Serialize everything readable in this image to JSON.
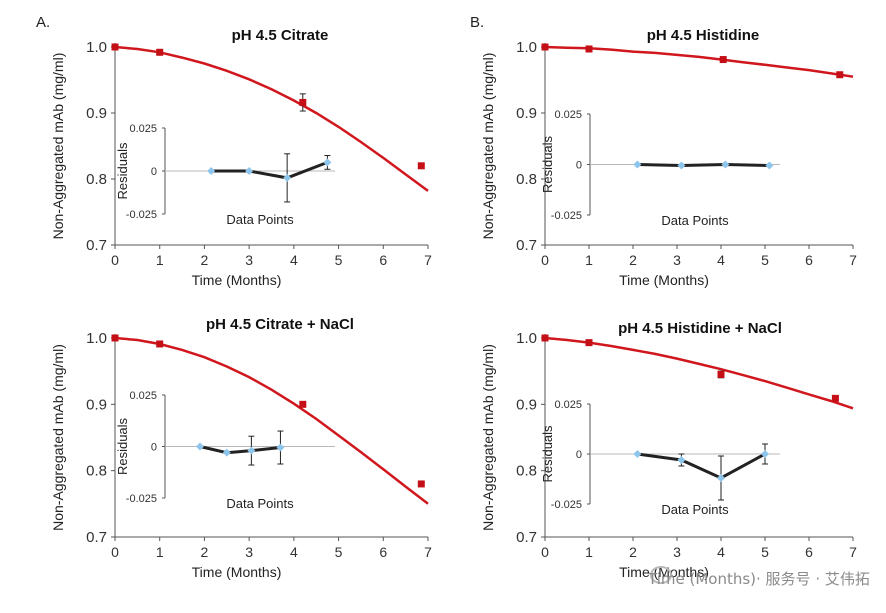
{
  "panel_labels": [
    "A.",
    "B."
  ],
  "watermark": "Time (Months)· 服务号 · 艾伟拓",
  "colors": {
    "main_line": "#d0171d",
    "main_marker": "#c40f16",
    "residual_line": "#222222",
    "residual_marker": "#8ec5ec",
    "axis": "#555555",
    "zero_line": "#b8b8b8"
  },
  "chart_data": [
    {
      "type": "line",
      "panel": "A.",
      "title": "pH 4.5 Citrate",
      "xlabel": "Time (Months)",
      "ylabel": "Non-Aggregated mAb (mg/ml)",
      "xlim": [
        0,
        7
      ],
      "ylim": [
        0.7,
        1.0
      ],
      "xticks": [
        "0",
        "1",
        "2",
        "3",
        "4",
        "5",
        "6",
        "7"
      ],
      "yticks": [
        "0.7",
        "0.8",
        "0.9",
        "1.0"
      ],
      "grid": false,
      "legend": "none",
      "series": [
        {
          "type": "line",
          "x": [
            0,
            0.5,
            1,
            1.5,
            2,
            2.5,
            3,
            3.5,
            4,
            4.5,
            5,
            5.5,
            6,
            6.5,
            7
          ],
          "y": [
            1.0,
            0.997,
            0.992,
            0.984,
            0.975,
            0.964,
            0.951,
            0.936,
            0.919,
            0.9,
            0.879,
            0.856,
            0.832,
            0.807,
            0.782
          ]
        },
        {
          "type": "scatter",
          "x": [
            0,
            1,
            4.2,
            6.85
          ],
          "y": [
            1.0,
            0.992,
            0.916,
            0.82
          ],
          "err": [
            0,
            0,
            0.013,
            0
          ]
        }
      ],
      "inset": {
        "xlabel": "Data Points",
        "ylabel": "Residuals",
        "yticks": [
          "0.025",
          "0",
          "-0.025"
        ],
        "ylim": [
          -0.025,
          0.025
        ],
        "x": [
          2.15,
          3.0,
          3.85,
          4.75
        ],
        "y": [
          0.0,
          0.0,
          -0.004,
          0.005
        ],
        "err": [
          0,
          0,
          0.014,
          0.004
        ]
      }
    },
    {
      "type": "line",
      "panel": "B.",
      "title": "pH 4.5 Histidine",
      "xlabel": "Time (Months)",
      "ylabel": "Non-Aggregated mAb (mg/ml)",
      "xlim": [
        0,
        7
      ],
      "ylim": [
        0.7,
        1.0
      ],
      "xticks": [
        "0",
        "1",
        "2",
        "3",
        "4",
        "5",
        "6",
        "7"
      ],
      "yticks": [
        "0.7",
        "0.8",
        "0.9",
        "1.0"
      ],
      "grid": false,
      "legend": "none",
      "series": [
        {
          "type": "line",
          "x": [
            0,
            0.5,
            1,
            1.5,
            2,
            2.5,
            3,
            3.5,
            4,
            4.5,
            5,
            5.5,
            6,
            6.5,
            7
          ],
          "y": [
            1.0,
            0.999,
            0.998,
            0.996,
            0.993,
            0.991,
            0.988,
            0.985,
            0.981,
            0.977,
            0.973,
            0.969,
            0.965,
            0.96,
            0.955
          ]
        },
        {
          "type": "scatter",
          "x": [
            0,
            1,
            4.05,
            6.7
          ],
          "y": [
            1.0,
            0.997,
            0.981,
            0.958
          ],
          "err": [
            0,
            0,
            0,
            0
          ]
        }
      ],
      "inset": {
        "xlabel": "Data Points",
        "ylabel": "Residuals",
        "yticks": [
          "0.025",
          "0",
          "-0.025"
        ],
        "ylim": [
          -0.025,
          0.025
        ],
        "x": [
          2.1,
          3.1,
          4.1,
          5.1
        ],
        "y": [
          0.0,
          -0.0005,
          0.0,
          -0.0005
        ],
        "err": [
          0,
          0,
          0,
          0
        ]
      }
    },
    {
      "type": "line",
      "panel": "A.",
      "title": "pH 4.5 Citrate + NaCl",
      "xlabel": "Time (Months)",
      "ylabel": "Non-Aggregated mAb (mg/ml)",
      "xlim": [
        0,
        7
      ],
      "ylim": [
        0.7,
        1.0
      ],
      "xticks": [
        "0",
        "1",
        "2",
        "3",
        "4",
        "5",
        "6",
        "7"
      ],
      "yticks": [
        "0.7",
        "0.8",
        "0.9",
        "1.0"
      ],
      "grid": false,
      "legend": "none",
      "series": [
        {
          "type": "line",
          "x": [
            0,
            0.5,
            1,
            1.5,
            2,
            2.5,
            3,
            3.5,
            4,
            4.5,
            5,
            5.5,
            6,
            6.5,
            7
          ],
          "y": [
            1.0,
            0.997,
            0.991,
            0.982,
            0.971,
            0.957,
            0.941,
            0.922,
            0.901,
            0.878,
            0.853,
            0.828,
            0.802,
            0.776,
            0.75
          ]
        },
        {
          "type": "scatter",
          "x": [
            0,
            1,
            4.2,
            6.85
          ],
          "y": [
            1.0,
            0.991,
            0.9,
            0.78
          ],
          "err": [
            0,
            0,
            0,
            0
          ]
        }
      ],
      "inset": {
        "xlabel": "Data Points",
        "ylabel": "Residuals",
        "yticks": [
          "0.025",
          "0",
          "-0.025"
        ],
        "ylim": [
          -0.025,
          0.025
        ],
        "x": [
          1.9,
          2.5,
          3.05,
          3.7
        ],
        "y": [
          0.0,
          -0.003,
          -0.002,
          -0.0005
        ],
        "err": [
          0,
          0,
          0.007,
          0.008
        ]
      }
    },
    {
      "type": "line",
      "panel": "B.",
      "title": "pH 4.5 Histidine + NaCl",
      "xlabel": "Time (Months)",
      "ylabel": "Non-Aggregated mAb (mg/ml)",
      "xlim": [
        0,
        7
      ],
      "ylim": [
        0.7,
        1.0
      ],
      "xticks": [
        "0",
        "1",
        "2",
        "3",
        "4",
        "5",
        "6",
        "7"
      ],
      "yticks": [
        "0.7",
        "0.8",
        "0.9",
        "1.0"
      ],
      "grid": false,
      "legend": "none",
      "series": [
        {
          "type": "line",
          "x": [
            0,
            0.5,
            1,
            1.5,
            2,
            2.5,
            3,
            3.5,
            4,
            4.5,
            5,
            5.5,
            6,
            6.5,
            7
          ],
          "y": [
            1.0,
            0.997,
            0.993,
            0.988,
            0.982,
            0.976,
            0.969,
            0.961,
            0.953,
            0.944,
            0.935,
            0.925,
            0.915,
            0.905,
            0.894
          ]
        },
        {
          "type": "scatter",
          "x": [
            0,
            1,
            4.0,
            6.6
          ],
          "y": [
            1.0,
            0.993,
            0.945,
            0.909
          ],
          "err": [
            0,
            0,
            0.005,
            0
          ]
        }
      ],
      "inset": {
        "xlabel": "Data Points",
        "ylabel": "Residuals",
        "yticks": [
          "0.025",
          "0",
          "-0.025"
        ],
        "ylim": [
          -0.025,
          0.025
        ],
        "x": [
          2.1,
          3.1,
          4.0,
          5.0
        ],
        "y": [
          0.0,
          -0.003,
          -0.012,
          0.0
        ],
        "err": [
          0,
          0.003,
          0.011,
          0.005
        ]
      }
    }
  ]
}
